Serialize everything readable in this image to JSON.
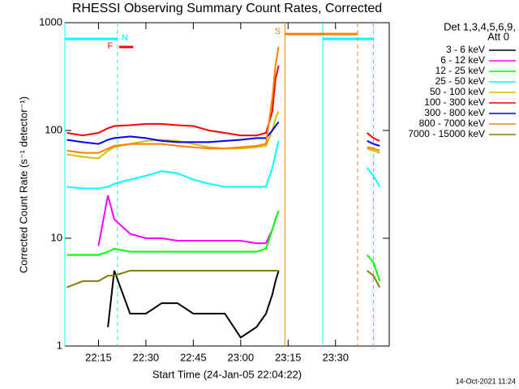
{
  "chart_data": {
    "type": "line",
    "title": "RHESSI Observing Summary Count Rates, Corrected",
    "x_label": "Start Time (24-Jan-05 22:04:22)",
    "y_label": "Corrected Count Rate (s⁻¹ detector⁻¹)",
    "legend_title": [
      "Det 1,3,4,5,6,9,",
      "Att 0"
    ],
    "footer": "14-Oct-2021 11:24",
    "log_y": true,
    "xlim": [
      "22:04:22",
      "23:47"
    ],
    "xticks": [
      "22:15",
      "22:30",
      "22:45",
      "23:00",
      "23:15",
      "23:30"
    ],
    "ylim": [
      1,
      1000
    ],
    "yticks": [
      1,
      10,
      100,
      1000
    ],
    "x": [
      "22:05",
      "22:10",
      "22:15",
      "22:18",
      "22:20",
      "22:25",
      "22:30",
      "22:35",
      "22:40",
      "22:45",
      "22:50",
      "22:55",
      "23:00",
      "23:05",
      "23:08",
      "23:10",
      "23:11",
      "23:12",
      "23:20",
      "23:40",
      "23:42",
      "23:44"
    ],
    "series": [
      {
        "name": "3 - 6 keV",
        "color": "#000000",
        "values": [
          null,
          null,
          null,
          1.5,
          5,
          2,
          2,
          2.5,
          2.5,
          2,
          2,
          2,
          1.2,
          1.5,
          2,
          3,
          4,
          5,
          null,
          null,
          null,
          null
        ]
      },
      {
        "name": "6 - 12 keV",
        "color": "#ff00ff",
        "values": [
          null,
          null,
          8.5,
          25,
          15,
          11,
          10,
          10,
          9.5,
          9.5,
          9.5,
          9.5,
          9.5,
          9,
          9,
          12,
          15,
          18,
          null,
          null,
          null,
          null
        ]
      },
      {
        "name": "12 - 25 keV",
        "color": "#00ff00",
        "values": [
          7,
          7,
          7,
          7.5,
          8,
          7.5,
          7.5,
          7.5,
          7.5,
          7.5,
          7.5,
          7.5,
          7.5,
          7.5,
          8,
          12,
          15,
          18,
          null,
          7,
          6,
          4
        ]
      },
      {
        "name": "25 - 50 keV",
        "color": "#00ffff",
        "values": [
          30,
          29,
          29,
          30,
          32,
          35,
          38,
          42,
          40,
          35,
          32,
          30,
          30,
          30,
          30,
          45,
          60,
          80,
          null,
          45,
          38,
          30
        ]
      },
      {
        "name": "50 - 100 keV",
        "color": "#d0c000",
        "values": [
          60,
          57,
          55,
          65,
          70,
          75,
          80,
          82,
          80,
          75,
          70,
          68,
          68,
          70,
          72,
          100,
          130,
          150,
          null,
          68,
          65,
          62
        ]
      },
      {
        "name": "100 - 300 keV",
        "color": "#ff0000",
        "values": [
          95,
          90,
          95,
          105,
          110,
          112,
          115,
          115,
          112,
          110,
          100,
          95,
          90,
          90,
          95,
          150,
          300,
          400,
          null,
          95,
          85,
          80
        ]
      },
      {
        "name": "300 - 800 keV",
        "color": "#0000ff",
        "values": [
          82,
          78,
          75,
          82,
          85,
          88,
          85,
          80,
          78,
          78,
          78,
          80,
          82,
          85,
          85,
          100,
          110,
          120,
          null,
          80,
          75,
          72
        ]
      },
      {
        "name": "800 - 7000 keV",
        "color": "#ff8000",
        "values": [
          65,
          62,
          62,
          68,
          72,
          75,
          75,
          75,
          72,
          70,
          68,
          68,
          70,
          72,
          75,
          200,
          400,
          600,
          null,
          70,
          68,
          65
        ]
      },
      {
        "name": "7000 - 15000 keV",
        "color": "#808000",
        "values": [
          3.5,
          4,
          4,
          4.5,
          4.5,
          5,
          5,
          5,
          5,
          5,
          5,
          5,
          5,
          5,
          5,
          5,
          5,
          5,
          null,
          5,
          4.5,
          3.5
        ]
      }
    ],
    "flags": [
      {
        "label": "N",
        "color": "#00ffff",
        "intervals": [
          [
            "22:04:22",
            "22:21"
          ],
          [
            "23:26",
            "23:42"
          ]
        ]
      },
      {
        "label": "F",
        "color": "#ff0000",
        "intervals": [
          [
            "22:21",
            "22:26"
          ]
        ]
      },
      {
        "label": "S",
        "color": "#ff8000",
        "intervals": [
          [
            "23:14",
            "23:37"
          ]
        ]
      }
    ]
  }
}
